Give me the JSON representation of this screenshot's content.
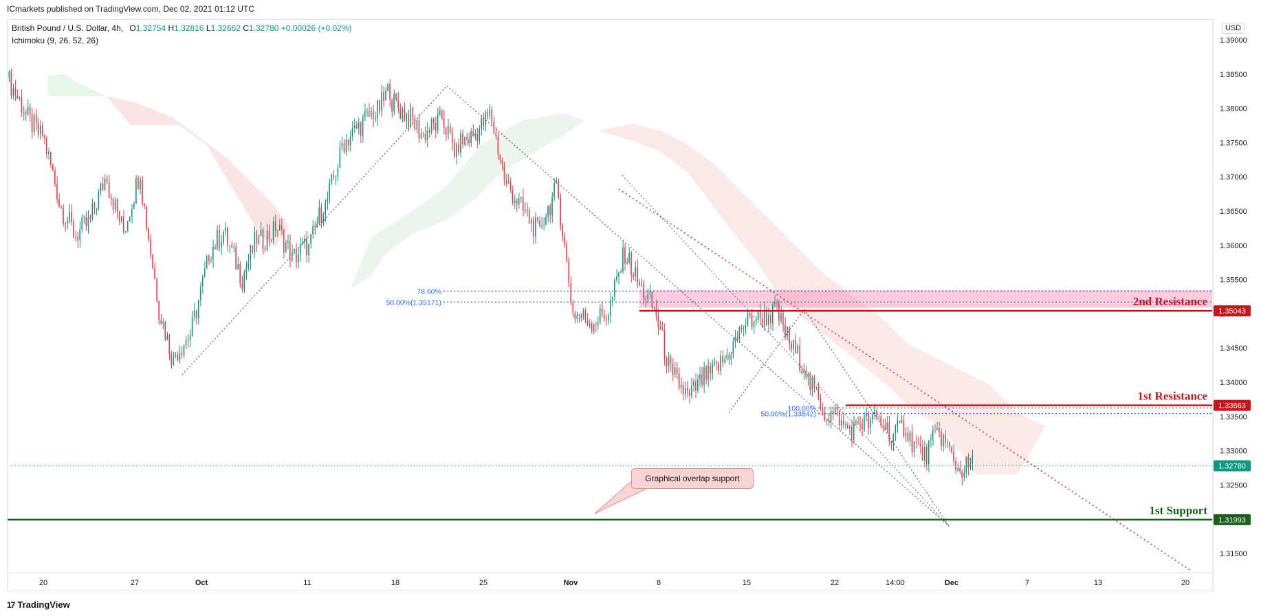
{
  "header": {
    "published_text": "ICmarkets published on TradingView.com, Dec 02, 2021 01:12 UTC"
  },
  "legend": {
    "symbol": "British Pound / U.S. Dollar, 4h,",
    "open": "1.32754",
    "high": "1.32816",
    "low": "1.32662",
    "close": "1.32780",
    "change": "+0.00026 (+0.02%)",
    "indicator": "Ichimoku (9, 26, 52, 26)"
  },
  "currency_label": "USD",
  "footer": {
    "logo_mark": "17",
    "logo_text": "TradingView"
  },
  "callout": {
    "text": "Graphical overlap support"
  },
  "colors": {
    "up": "#089981",
    "down": "#f23645",
    "resistance": "#c4161c",
    "support": "#1b5e20",
    "fib_blue": "#2962ff",
    "zone_pink": "#f48fb1",
    "cloud_green": "#d8eedb",
    "cloud_red": "#fcd9d9"
  },
  "chart_data": {
    "type": "candlestick",
    "symbol": "GBPUSD",
    "timeframe": "4h",
    "ylim": [
      1.311,
      1.3915
    ],
    "y_ticks": [
      "1.39000",
      "1.38500",
      "1.38000",
      "1.37500",
      "1.37000",
      "1.36500",
      "1.36000",
      "1.35500",
      "1.35000",
      "1.34500",
      "1.34000",
      "1.33500",
      "1.33000",
      "1.32500",
      "1.32000",
      "1.31500"
    ],
    "x_ticks": [
      "20",
      "27",
      "Oct",
      "11",
      "18",
      "25",
      "Nov",
      "8",
      "15",
      "22",
      "14:00",
      "Dec",
      "7",
      "13",
      "20"
    ],
    "last_price": "1.32780",
    "levels": [
      {
        "name": "2nd Resistance",
        "price": 1.35043,
        "price_label": "1.35043",
        "zone": [
          1.3509,
          1.3535
        ]
      },
      {
        "name": "1st Resistance",
        "price": 1.33663,
        "price_label": "1.33663"
      },
      {
        "name": "1st Support",
        "price": 1.31993,
        "price_label": "1.31993"
      }
    ],
    "fib_labels": [
      {
        "text": "78.60%",
        "price": 1.3533
      },
      {
        "text": "50.00%(1.35171)",
        "price": 1.35171
      },
      {
        "text": "100.00%",
        "price": 1.33625
      },
      {
        "text": "50.00%(1.33542)",
        "price": 1.33542
      }
    ],
    "price_path": [
      [
        1.3845,
        1.38
      ],
      [
        1.379,
        1.376
      ],
      [
        1.372,
        1.368
      ],
      [
        1.366,
        1.362
      ],
      [
        1.361,
        1.3635
      ],
      [
        1.3675,
        1.3705
      ],
      [
        1.367,
        1.362
      ],
      [
        1.366,
        1.371
      ],
      [
        1.355,
        1.353
      ],
      [
        1.348,
        1.343
      ],
      [
        1.346,
        1.347
      ],
      [
        1.353,
        1.357
      ],
      [
        1.363,
        1.362
      ],
      [
        1.359,
        1.356
      ],
      [
        1.359,
        1.361
      ],
      [
        1.363,
        1.362
      ],
      [
        1.36,
        1.359
      ],
      [
        1.357,
        1.36
      ],
      [
        1.363,
        1.366
      ],
      [
        1.37,
        1.373
      ],
      [
        1.375,
        1.377
      ],
      [
        1.378,
        1.3795
      ],
      [
        1.382,
        1.383
      ],
      [
        1.381,
        1.379
      ],
      [
        1.377,
        1.376
      ],
      [
        1.378,
        1.378
      ],
      [
        1.376,
        1.373
      ],
      [
        1.375,
        1.376
      ],
      [
        1.378,
        1.379
      ],
      [
        1.37,
        1.3685
      ],
      [
        1.3665,
        1.365
      ],
      [
        1.3625,
        1.3615
      ],
      [
        1.362,
        1.368
      ],
      [
        1.3645,
        1.35
      ],
      [
        1.3505,
        1.349
      ],
      [
        1.348,
        1.35
      ],
      [
        1.355,
        1.358
      ],
      [
        1.356,
        1.354
      ],
      [
        1.3535,
        1.35
      ],
      [
        1.346,
        1.34
      ],
      [
        1.336,
        1.3375
      ],
      [
        1.34,
        1.341
      ],
      [
        1.342,
        1.343
      ],
      [
        1.345,
        1.347
      ],
      [
        1.3465,
        1.3495
      ],
      [
        1.3505,
        1.35
      ],
      [
        1.349,
        1.346
      ],
      [
        1.345,
        1.342
      ],
      [
        1.338,
        1.3365
      ],
      [
        1.337,
        1.335
      ],
      [
        1.332,
        1.333
      ],
      [
        1.331,
        1.334
      ],
      [
        1.336,
        1.333
      ],
      [
        1.331,
        1.334
      ],
      [
        1.3355,
        1.3295
      ],
      [
        1.326,
        1.333
      ],
      [
        1.3345,
        1.328
      ],
      [
        1.3275,
        1.3278
      ]
    ]
  }
}
